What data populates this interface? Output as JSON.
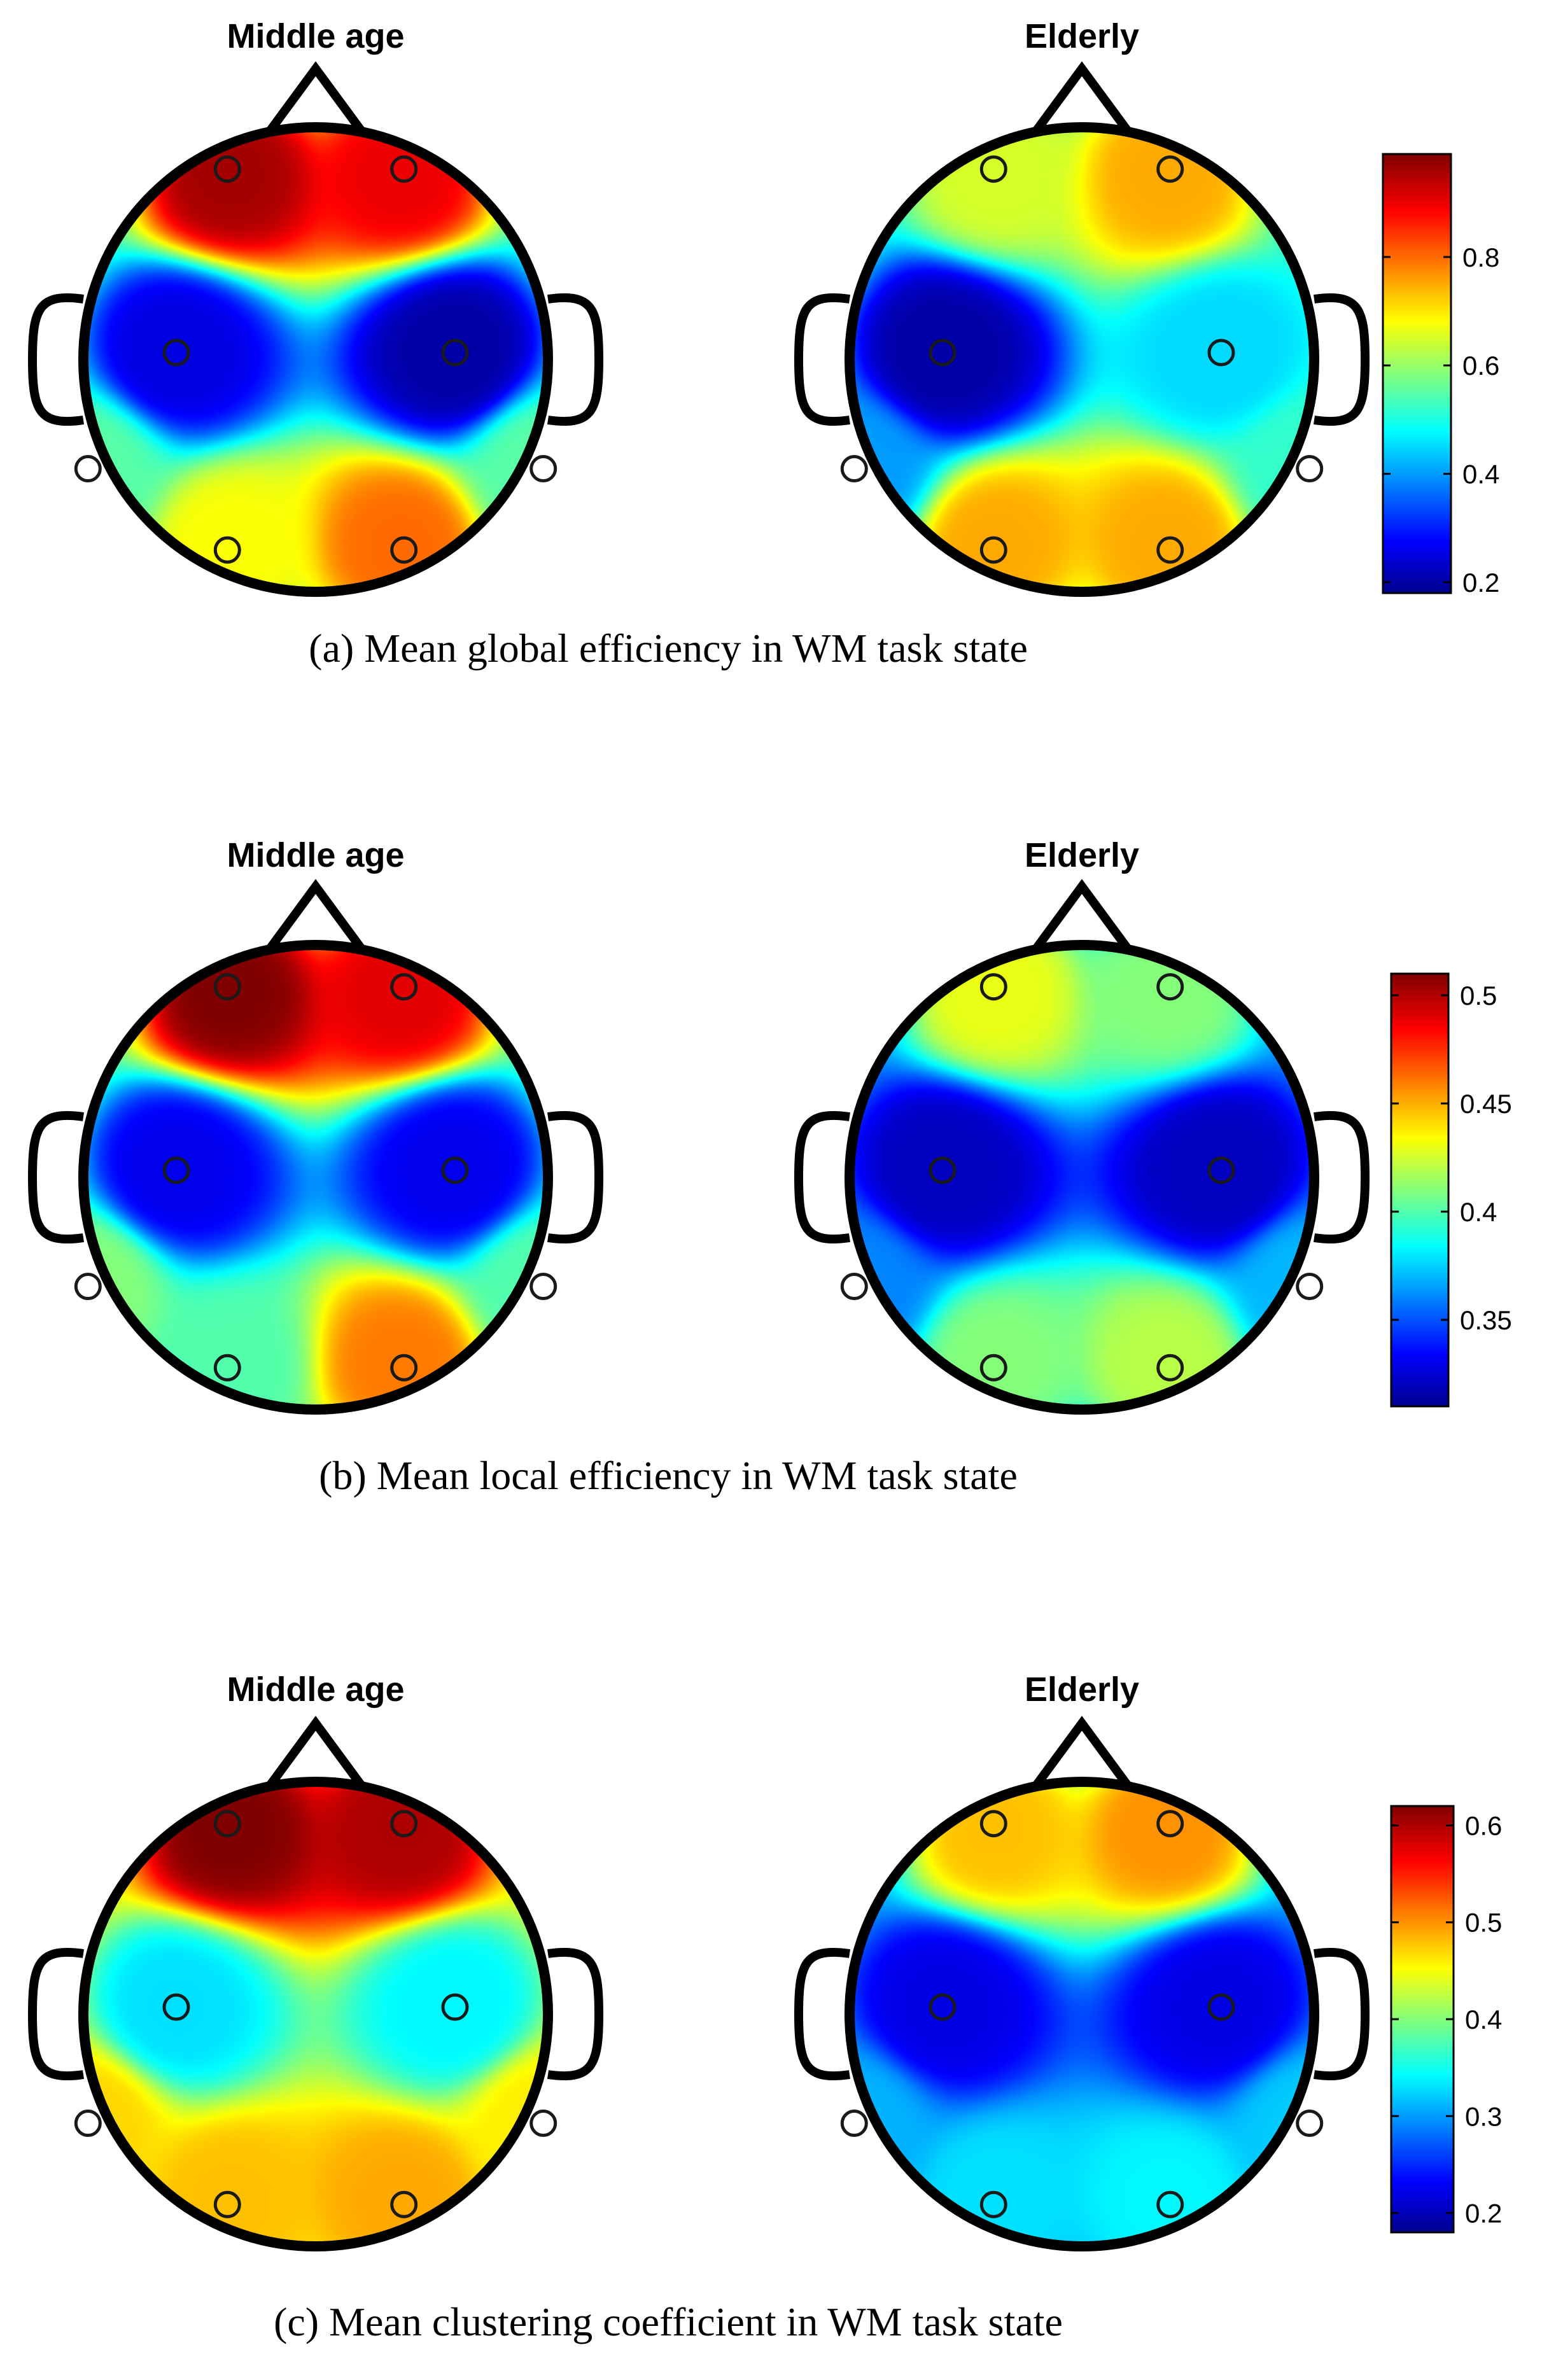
{
  "figure": {
    "colors": {
      "outline": "#000000",
      "colormap": [
        "#00008f",
        "#0000ff",
        "#00ffff",
        "#ffff00",
        "#ff0000",
        "#800000"
      ]
    },
    "panels": [
      {
        "caption": "(a) Mean global efficiency in WM task state",
        "colorbar": {
          "min": 0.18,
          "max": 0.99,
          "ticks": [
            0.2,
            0.4,
            0.6,
            0.8
          ],
          "tick_labels": [
            "0.2",
            "0.4",
            "0.6",
            "0.8"
          ]
        }
      },
      {
        "caption": "(b) Mean local efficiency in WM task state",
        "colorbar": {
          "min": 0.31,
          "max": 0.51,
          "ticks": [
            0.35,
            0.4,
            0.45,
            0.5
          ],
          "tick_labels": [
            "0.35",
            "0.4",
            "0.45",
            "0.5"
          ]
        }
      },
      {
        "caption": "(c) Mean clustering coefficient in WM task state",
        "colorbar": {
          "min": 0.18,
          "max": 0.62,
          "ticks": [
            0.2,
            0.3,
            0.4,
            0.5,
            0.6
          ],
          "tick_labels": [
            "0.2",
            "0.3",
            "0.4",
            "0.5",
            "0.6"
          ]
        }
      }
    ]
  },
  "chart_data": [
    {
      "type": "heatmap",
      "title": "Middle age",
      "caption": "(a) Mean global efficiency in WM task state",
      "channels": [
        "F-left",
        "F-right",
        "C-left",
        "C-right",
        "T-left",
        "T-right",
        "P-left",
        "P-right"
      ],
      "values": [
        0.96,
        0.9,
        0.25,
        0.2,
        0.55,
        0.55,
        0.68,
        0.8
      ],
      "background": 0.52,
      "clim": [
        0.18,
        0.99
      ]
    },
    {
      "type": "heatmap",
      "title": "Elderly",
      "caption": "(a) Mean global efficiency in WM task state",
      "channels": [
        "F-left",
        "F-right",
        "C-left",
        "C-right",
        "T-left",
        "T-right",
        "P-left",
        "P-right"
      ],
      "values": [
        0.65,
        0.75,
        0.2,
        0.45,
        0.4,
        0.52,
        0.75,
        0.75
      ],
      "background": 0.5,
      "clim": [
        0.18,
        0.99
      ]
    },
    {
      "type": "heatmap",
      "title": "Middle age",
      "caption": "(b) Mean local efficiency in WM task state",
      "channels": [
        "F-left",
        "F-right",
        "C-left",
        "C-right",
        "T-left",
        "T-right",
        "P-left",
        "P-right"
      ],
      "values": [
        0.51,
        0.49,
        0.33,
        0.33,
        0.41,
        0.4,
        0.4,
        0.46
      ],
      "background": 0.4,
      "clim": [
        0.31,
        0.51
      ]
    },
    {
      "type": "heatmap",
      "title": "Elderly",
      "caption": "(b) Mean local efficiency in WM task state",
      "channels": [
        "F-left",
        "F-right",
        "C-left",
        "C-right",
        "T-left",
        "T-right",
        "P-left",
        "P-right"
      ],
      "values": [
        0.43,
        0.41,
        0.32,
        0.32,
        0.36,
        0.37,
        0.41,
        0.42
      ],
      "background": 0.36,
      "clim": [
        0.31,
        0.51
      ]
    },
    {
      "type": "heatmap",
      "title": "Middle age",
      "caption": "(c) Mean clustering coefficient in WM task state",
      "channels": [
        "F-left",
        "F-right",
        "C-left",
        "C-right",
        "T-left",
        "T-right",
        "P-left",
        "P-right"
      ],
      "values": [
        0.62,
        0.6,
        0.33,
        0.34,
        0.47,
        0.46,
        0.48,
        0.49
      ],
      "background": 0.44,
      "clim": [
        0.18,
        0.62
      ]
    },
    {
      "type": "heatmap",
      "title": "Elderly",
      "caption": "(c) Mean clustering coefficient in WM task state",
      "channels": [
        "F-left",
        "F-right",
        "C-left",
        "C-right",
        "T-left",
        "T-right",
        "P-left",
        "P-right"
      ],
      "values": [
        0.48,
        0.5,
        0.22,
        0.22,
        0.31,
        0.32,
        0.33,
        0.34
      ],
      "background": 0.3,
      "clim": [
        0.18,
        0.62
      ]
    }
  ]
}
